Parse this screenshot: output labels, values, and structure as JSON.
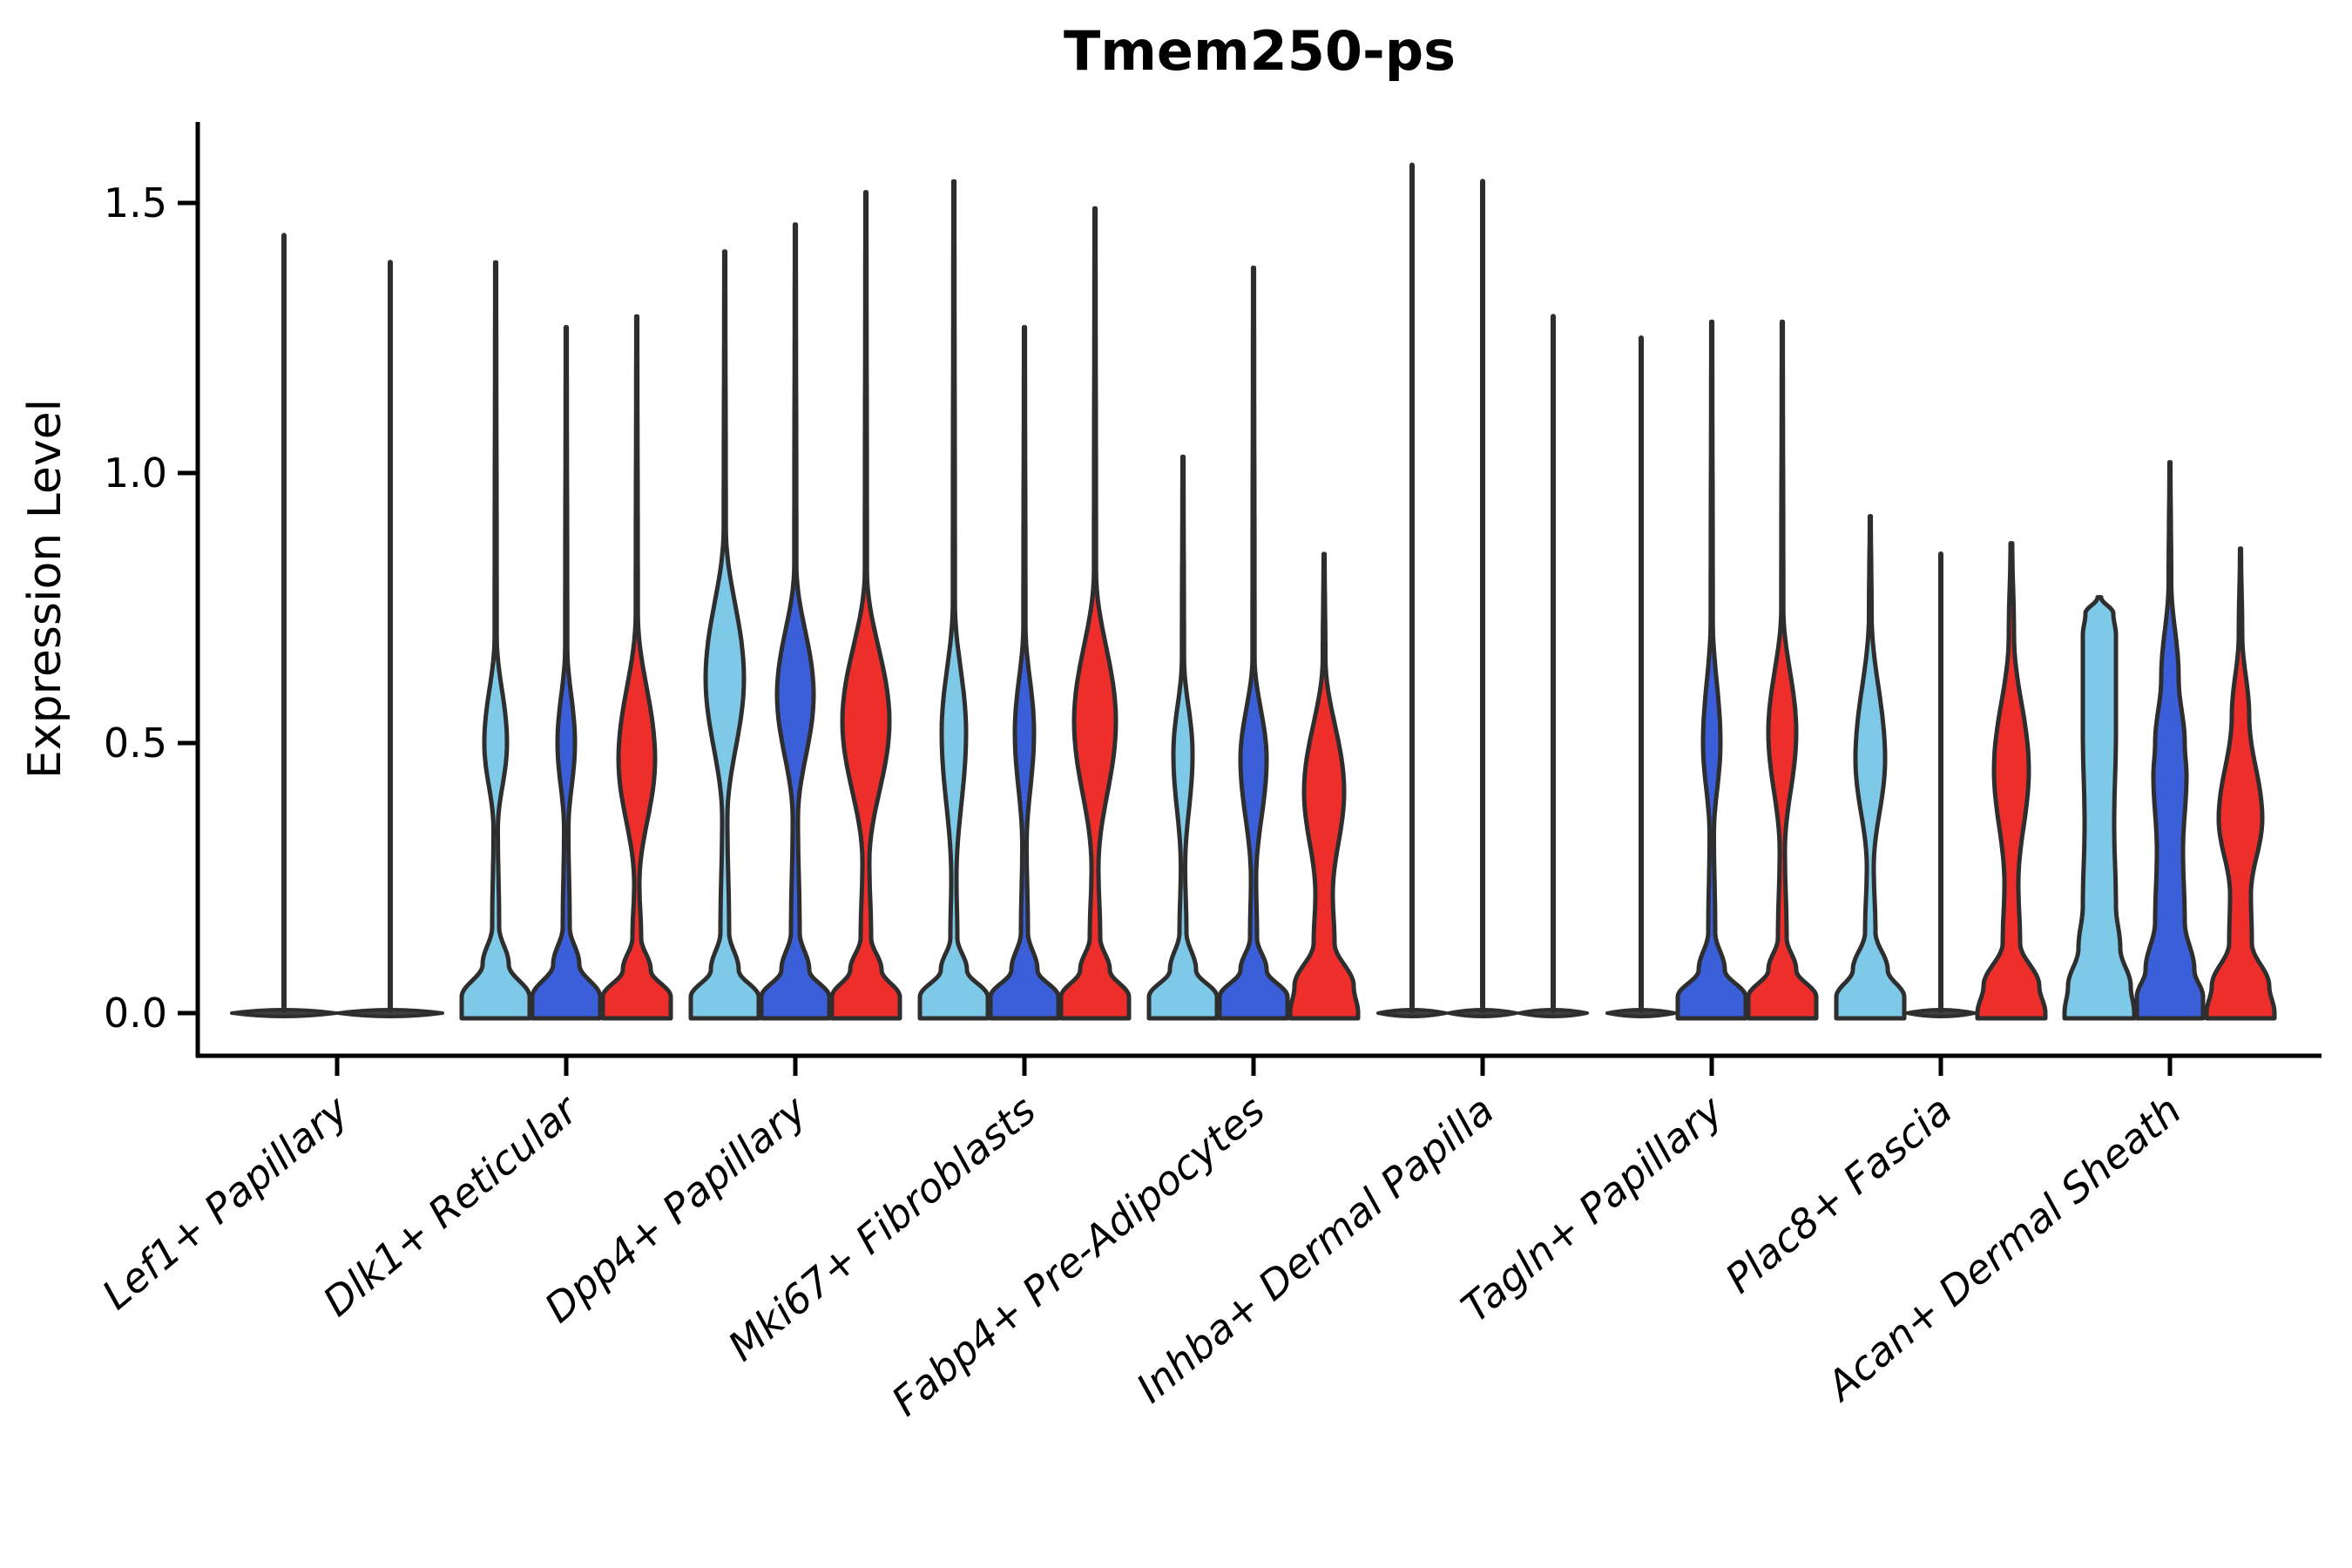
{
  "chart_data": {
    "type": "violin",
    "title": "Tmem250-ps",
    "ylabel": "Expression Level",
    "yticks": [
      0.0,
      0.5,
      1.0,
      1.5
    ],
    "ylim": [
      0,
      1.65
    ],
    "grid": false,
    "legend": "none",
    "colors": {
      "light_blue": "#7EC8E8",
      "dark_blue": "#3A5FD9",
      "red": "#EE2E2B",
      "outline": "#2E2E2E",
      "flat_fill": "#3F3F3F",
      "axis": "#000000"
    },
    "categories": [
      "Lef1+ Papillary",
      "Dlk1+ Reticular",
      "Dpp4+ Papillary",
      "Mki67+ Fibroblasts",
      "Fabp4+ Pre-Adipocytes",
      "Inhba+ Dermal Papilla",
      "Tagln+ Papillary",
      "Plac8+ Fascia",
      "Acan+ Dermal Sheath"
    ],
    "groups": [
      {
        "category": "Lef1+ Papillary",
        "violins": [
          {
            "type": "flat",
            "color": "light_blue",
            "max": 1.44,
            "hw": 60
          },
          {
            "type": "flat",
            "color": "dark_blue",
            "max": 1.39,
            "hw": 60
          }
        ]
      },
      {
        "category": "Dlk1+ Reticular",
        "violins": [
          {
            "type": "shaped",
            "color": "light_blue",
            "max": 1.39,
            "profile": [
              [
                1.39,
                0.6
              ],
              [
                0.7,
                1.2
              ],
              [
                0.5,
                13
              ],
              [
                0.34,
                2.5
              ],
              [
                0.16,
                4
              ],
              [
                0.09,
                15
              ],
              [
                0.03,
                39
              ],
              [
                0,
                39
              ]
            ]
          },
          {
            "type": "shaped",
            "color": "dark_blue",
            "max": 1.27,
            "profile": [
              [
                1.27,
                0.6
              ],
              [
                0.68,
                1.2
              ],
              [
                0.5,
                10
              ],
              [
                0.34,
                2.5
              ],
              [
                0.16,
                4
              ],
              [
                0.09,
                15
              ],
              [
                0.03,
                39
              ],
              [
                0,
                39
              ]
            ]
          },
          {
            "type": "shaped",
            "color": "red",
            "max": 1.29,
            "profile": [
              [
                1.29,
                0.6
              ],
              [
                0.74,
                1.2
              ],
              [
                0.47,
                21
              ],
              [
                0.24,
                3
              ],
              [
                0.14,
                5
              ],
              [
                0.08,
                16
              ],
              [
                0.03,
                39
              ],
              [
                0,
                39
              ]
            ]
          }
        ]
      },
      {
        "category": "Dpp4+ Papillary",
        "violins": [
          {
            "type": "shaped",
            "color": "light_blue",
            "max": 1.41,
            "profile": [
              [
                1.41,
                0.6
              ],
              [
                0.9,
                1.2
              ],
              [
                0.62,
                22
              ],
              [
                0.36,
                3
              ],
              [
                0.15,
                5
              ],
              [
                0.08,
                16
              ],
              [
                0.03,
                39
              ],
              [
                0,
                39
              ]
            ]
          },
          {
            "type": "shaped",
            "color": "dark_blue",
            "max": 1.46,
            "profile": [
              [
                1.46,
                0.6
              ],
              [
                0.83,
                1.2
              ],
              [
                0.59,
                21
              ],
              [
                0.36,
                3
              ],
              [
                0.15,
                5
              ],
              [
                0.08,
                16
              ],
              [
                0.03,
                39
              ],
              [
                0,
                39
              ]
            ]
          },
          {
            "type": "shaped",
            "color": "red",
            "max": 1.52,
            "profile": [
              [
                1.52,
                0.6
              ],
              [
                0.82,
                1.2
              ],
              [
                0.54,
                27
              ],
              [
                0.28,
                4
              ],
              [
                0.14,
                6
              ],
              [
                0.08,
                18
              ],
              [
                0.03,
                39
              ],
              [
                0,
                39
              ]
            ]
          }
        ]
      },
      {
        "category": "Mki67+ Fibroblasts",
        "violins": [
          {
            "type": "shaped",
            "color": "light_blue",
            "max": 1.54,
            "profile": [
              [
                1.54,
                0.6
              ],
              [
                0.76,
                1.2
              ],
              [
                0.52,
                14
              ],
              [
                0.25,
                3
              ],
              [
                0.14,
                4
              ],
              [
                0.08,
                15
              ],
              [
                0.03,
                39
              ],
              [
                0,
                39
              ]
            ]
          },
          {
            "type": "shaped",
            "color": "dark_blue",
            "max": 1.27,
            "profile": [
              [
                1.27,
                0.6
              ],
              [
                0.72,
                1.2
              ],
              [
                0.52,
                11
              ],
              [
                0.31,
                2.5
              ],
              [
                0.15,
                4
              ],
              [
                0.08,
                15
              ],
              [
                0.03,
                39
              ],
              [
                0,
                39
              ]
            ]
          },
          {
            "type": "shaped",
            "color": "red",
            "max": 1.49,
            "profile": [
              [
                1.49,
                0.6
              ],
              [
                0.82,
                1.2
              ],
              [
                0.54,
                24
              ],
              [
                0.27,
                4
              ],
              [
                0.14,
                6
              ],
              [
                0.08,
                17
              ],
              [
                0.03,
                39
              ],
              [
                0,
                39
              ]
            ]
          }
        ]
      },
      {
        "category": "Fabp4+ Pre-Adipocytes",
        "violins": [
          {
            "type": "shaped",
            "color": "light_blue",
            "max": 1.03,
            "profile": [
              [
                1.03,
                0.6
              ],
              [
                0.66,
                1.2
              ],
              [
                0.48,
                11
              ],
              [
                0.27,
                2.5
              ],
              [
                0.15,
                4
              ],
              [
                0.08,
                15
              ],
              [
                0.03,
                39
              ],
              [
                0,
                39
              ]
            ]
          },
          {
            "type": "shaped",
            "color": "dark_blue",
            "max": 1.38,
            "profile": [
              [
                1.38,
                0.6
              ],
              [
                0.66,
                1.2
              ],
              [
                0.47,
                15
              ],
              [
                0.25,
                3
              ],
              [
                0.14,
                4
              ],
              [
                0.08,
                15
              ],
              [
                0.03,
                39
              ],
              [
                0,
                39
              ]
            ]
          },
          {
            "type": "shaped",
            "color": "red",
            "max": 0.85,
            "profile": [
              [
                0.85,
                0.6
              ],
              [
                0.66,
                1.5
              ],
              [
                0.41,
                23
              ],
              [
                0.22,
                10
              ],
              [
                0.13,
                12
              ],
              [
                0.05,
                34
              ],
              [
                0,
                39
              ]
            ]
          }
        ]
      },
      {
        "category": "Inhba+ Dermal Papilla",
        "violins": [
          {
            "type": "flat",
            "color": "light_blue",
            "max": 1.57,
            "hw": 39
          },
          {
            "type": "flat",
            "color": "dark_blue",
            "max": 1.54,
            "hw": 39
          },
          {
            "type": "flat",
            "color": "red",
            "max": 1.29,
            "hw": 39
          }
        ]
      },
      {
        "category": "Tagln+ Papillary",
        "violins": [
          {
            "type": "flat",
            "color": "light_blue",
            "max": 1.25,
            "hw": 39
          },
          {
            "type": "shaped",
            "color": "dark_blue",
            "max": 1.28,
            "profile": [
              [
                1.28,
                0.6
              ],
              [
                0.73,
                1.2
              ],
              [
                0.5,
                10
              ],
              [
                0.33,
                2.5
              ],
              [
                0.15,
                4
              ],
              [
                0.08,
                15
              ],
              [
                0.03,
                39
              ],
              [
                0,
                39
              ]
            ]
          },
          {
            "type": "shaped",
            "color": "red",
            "max": 1.28,
            "profile": [
              [
                1.28,
                0.6
              ],
              [
                0.75,
                1.2
              ],
              [
                0.52,
                16
              ],
              [
                0.3,
                3
              ],
              [
                0.14,
                5
              ],
              [
                0.08,
                16
              ],
              [
                0.03,
                39
              ],
              [
                0,
                39
              ]
            ]
          }
        ]
      },
      {
        "category": "Plac8+ Fascia",
        "violins": [
          {
            "type": "shaped",
            "color": "light_blue",
            "max": 0.92,
            "profile": [
              [
                0.92,
                0.6
              ],
              [
                0.74,
                1.5
              ],
              [
                0.47,
                17
              ],
              [
                0.27,
                4
              ],
              [
                0.15,
                6
              ],
              [
                0.08,
                20
              ],
              [
                0.03,
                39
              ],
              [
                0,
                39
              ]
            ]
          },
          {
            "type": "flat",
            "color": "dark_blue",
            "max": 0.85,
            "hw": 39
          },
          {
            "type": "shaped",
            "color": "red",
            "max": 0.87,
            "profile": [
              [
                0.87,
                1
              ],
              [
                0.7,
                3
              ],
              [
                0.45,
                20
              ],
              [
                0.24,
                8
              ],
              [
                0.13,
                10
              ],
              [
                0.05,
                32
              ],
              [
                0,
                39
              ]
            ]
          }
        ]
      },
      {
        "category": "Acan+ Dermal Sheath",
        "violins": [
          {
            "type": "shaped",
            "color": "light_blue",
            "max": 0.77,
            "profile": [
              [
                0.77,
                2
              ],
              [
                0.74,
                16
              ],
              [
                0.7,
                19
              ],
              [
                0.52,
                19
              ],
              [
                0.35,
                17
              ],
              [
                0.2,
                19
              ],
              [
                0.12,
                24
              ],
              [
                0.05,
                36
              ],
              [
                0,
                40
              ]
            ]
          },
          {
            "type": "shaped",
            "color": "dark_blue",
            "max": 1.02,
            "profile": [
              [
                1.02,
                0.6
              ],
              [
                0.8,
                1.5
              ],
              [
                0.62,
                10
              ],
              [
                0.5,
                17
              ],
              [
                0.44,
                19
              ],
              [
                0.3,
                15
              ],
              [
                0.17,
                17
              ],
              [
                0.08,
                28
              ],
              [
                0.03,
                38
              ],
              [
                0,
                38
              ]
            ]
          },
          {
            "type": "shaped",
            "color": "red",
            "max": 0.86,
            "profile": [
              [
                0.86,
                0.6
              ],
              [
                0.7,
                2
              ],
              [
                0.55,
                10
              ],
              [
                0.36,
                25
              ],
              [
                0.22,
                12
              ],
              [
                0.13,
                13
              ],
              [
                0.05,
                33
              ],
              [
                0,
                39
              ]
            ]
          }
        ]
      }
    ]
  }
}
